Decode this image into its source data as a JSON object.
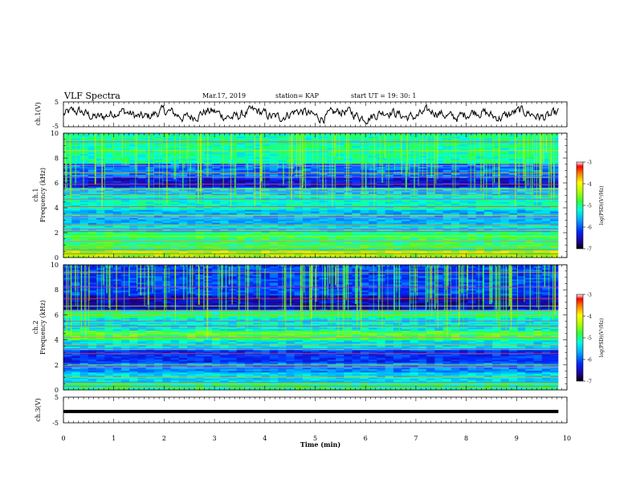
{
  "header": {
    "title": "VLF Spectra",
    "date": "Mar.17, 2019",
    "station": "station= KAP",
    "start": "start  UT =   19: 30: 1"
  },
  "chart_data": [
    {
      "type": "line",
      "panel": "ch1-waveform",
      "ylabel": "ch.1(V)",
      "ylim": [
        -5,
        5
      ],
      "yticks": [
        "5",
        "-5"
      ],
      "xlim": [
        0,
        10
      ],
      "data_end_min": 9.83,
      "approx_mean_V": 0,
      "approx_range_V": [
        -4,
        4
      ]
    },
    {
      "type": "heatmap",
      "panel": "ch1-spectrogram",
      "ylabel": "ch.1",
      "ylabel2": "Frequency (kHz)",
      "ylim": [
        0,
        10
      ],
      "yticks": [
        "0",
        "2",
        "4",
        "6",
        "8",
        "10"
      ],
      "xlim": [
        0,
        10
      ],
      "data_end_min": 9.83,
      "colorbar": {
        "label": "log(PSD)(V²/Hz)",
        "range": [
          -7,
          -3
        ],
        "ticks": [
          "-3",
          "-4",
          "-5",
          "-6",
          "-7"
        ]
      },
      "bands": [
        {
          "f": [
            0,
            0.6
          ],
          "level": -4.4
        },
        {
          "f": [
            0.6,
            2.0
          ],
          "level": -4.9
        },
        {
          "f": [
            2.0,
            2.5
          ],
          "level": -5.3
        },
        {
          "f": [
            2.5,
            3.8
          ],
          "level": -5.6
        },
        {
          "f": [
            3.8,
            5.0
          ],
          "level": -5.2
        },
        {
          "f": [
            5.0,
            5.6
          ],
          "level": -5.5
        },
        {
          "f": [
            5.6,
            6.4
          ],
          "level": -6.4
        },
        {
          "f": [
            6.4,
            7.6
          ],
          "level": -5.9
        },
        {
          "f": [
            7.6,
            10.0
          ],
          "level": -5.1
        }
      ],
      "lines_khz": [
        0.3,
        0.6,
        0.9,
        1.3,
        1.7,
        2.1,
        2.3,
        2.6,
        3.2,
        3.4,
        4.1,
        4.7,
        5.0,
        5.3,
        5.5,
        5.9,
        6.5,
        6.8,
        7.4,
        8.6,
        9.3
      ]
    },
    {
      "type": "heatmap",
      "panel": "ch2-spectrogram",
      "ylabel": "ch.2",
      "ylabel2": "Frequency (kHz)",
      "ylim": [
        0,
        10
      ],
      "yticks": [
        "0",
        "2",
        "4",
        "6",
        "8",
        "10"
      ],
      "xlim": [
        0,
        10
      ],
      "data_end_min": 9.83,
      "colorbar": {
        "label": "log(PSD)(V²/Hz)",
        "range": [
          -7,
          -3
        ],
        "ticks": [
          "-3",
          "-4",
          "-5",
          "-6",
          "-7"
        ]
      },
      "bands": [
        {
          "f": [
            0,
            0.6
          ],
          "level": -5.0
        },
        {
          "f": [
            0.6,
            1.4
          ],
          "level": -5.4
        },
        {
          "f": [
            1.4,
            2.2
          ],
          "level": -5.8
        },
        {
          "f": [
            2.2,
            3.2
          ],
          "level": -6.2
        },
        {
          "f": [
            3.2,
            4.0
          ],
          "level": -5.4
        },
        {
          "f": [
            4.0,
            4.8
          ],
          "level": -4.8
        },
        {
          "f": [
            4.8,
            5.8
          ],
          "level": -5.3
        },
        {
          "f": [
            5.8,
            6.4
          ],
          "level": -5.0
        },
        {
          "f": [
            6.4,
            7.6
          ],
          "level": -6.5
        },
        {
          "f": [
            7.6,
            10.0
          ],
          "level": -6.1
        }
      ],
      "lines_khz": [
        0.3,
        0.6,
        1.0,
        1.8,
        2.0,
        2.9,
        3.3,
        3.6,
        4.2,
        4.5,
        5.1,
        5.5,
        6.0,
        6.3,
        6.7,
        7.3,
        8.2,
        9.4
      ]
    },
    {
      "type": "line",
      "panel": "ch3-waveform",
      "ylabel": "ch.3(V)",
      "ylim": [
        -5,
        5
      ],
      "yticks": [
        "5",
        "-5"
      ],
      "xlim": [
        0,
        10
      ],
      "data_end_min": 9.83,
      "approx_value_V": -0.6
    }
  ],
  "xaxis": {
    "label": "Time (min)",
    "ticks": [
      "0",
      "1",
      "2",
      "3",
      "4",
      "5",
      "6",
      "7",
      "8",
      "9",
      "10"
    ]
  }
}
